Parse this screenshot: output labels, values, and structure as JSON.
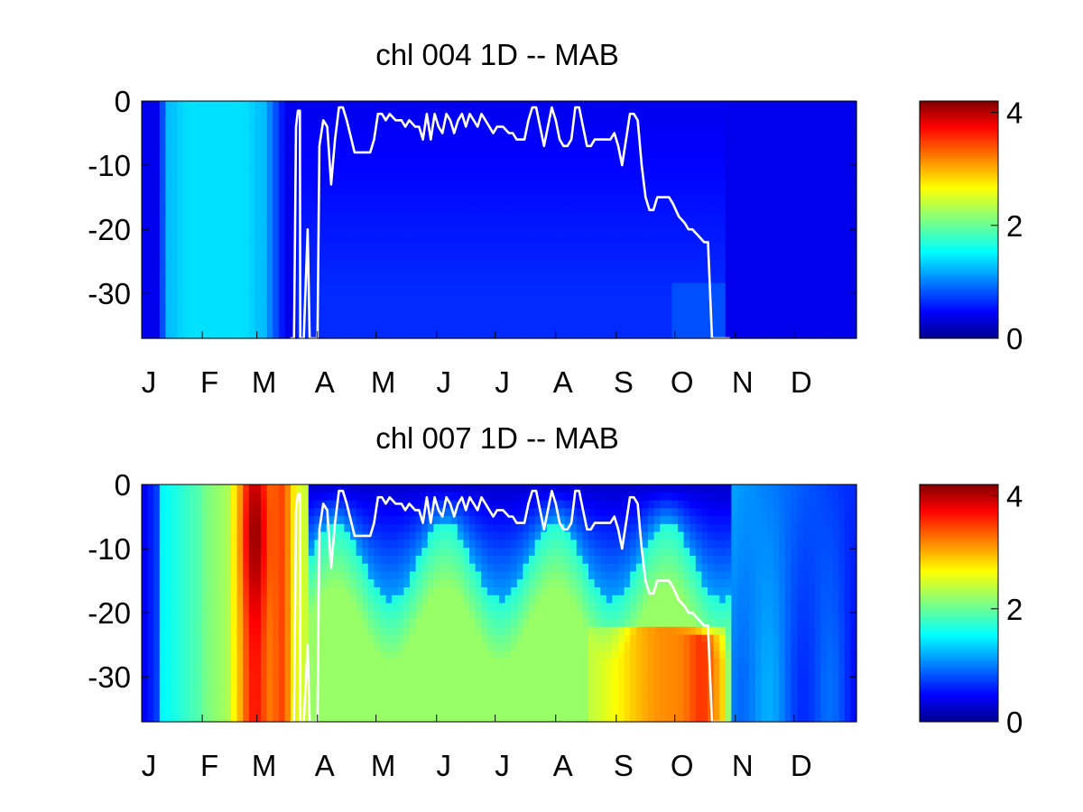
{
  "chart_data": [
    {
      "type": "heatmap",
      "title": "chl  004 1D   -- MAB",
      "x_tick_labels": [
        "J",
        "F",
        "M",
        "A",
        "M",
        "J",
        "J",
        "A",
        "S",
        "O",
        "N",
        "D"
      ],
      "y_tick_labels": [
        "0",
        "-10",
        "-20",
        "-30"
      ],
      "y_ticks": [
        0,
        -10,
        -20,
        -30
      ],
      "ylim": [
        -37,
        0
      ],
      "colorbar": {
        "ticks": [
          0,
          2,
          4
        ],
        "tick_labels": [
          "0",
          "2",
          "4"
        ],
        "clim": [
          0,
          4.2
        ],
        "colormap": "jet"
      },
      "mixed_layer_line": {
        "color": "#ffffff",
        "x_day": [
          76,
          77,
          78,
          79,
          80,
          81,
          81.2,
          83,
          85,
          86,
          87,
          89,
          90,
          91,
          93,
          95,
          97,
          99,
          101,
          103,
          105,
          109,
          111,
          113,
          115,
          117,
          119,
          121,
          123,
          125,
          127,
          130,
          133,
          135,
          137,
          140,
          142,
          144,
          146,
          148,
          150,
          152,
          154,
          156,
          158,
          160,
          162,
          164,
          166,
          168,
          170,
          172,
          174,
          176,
          178,
          180,
          182,
          185,
          188,
          190,
          192,
          194,
          196,
          198,
          200,
          202,
          204,
          206,
          208,
          210,
          212,
          214,
          216,
          218,
          220,
          222,
          224,
          226,
          228,
          230,
          232,
          234,
          236,
          238,
          240,
          242,
          244,
          246,
          248,
          250,
          252,
          254,
          256,
          258,
          260,
          262,
          264,
          266,
          268,
          270,
          272,
          275,
          278,
          280,
          282,
          285,
          288,
          290,
          292,
          294,
          296,
          298,
          300,
          301,
          301.2
        ],
        "depth": [
          -37,
          -37,
          -37,
          -4,
          -1.5,
          -1.5,
          -37,
          -37,
          -20,
          -37,
          -37,
          -37,
          -37,
          -7,
          -3,
          -4,
          -13,
          -6,
          -1,
          -1,
          -3,
          -8,
          -8,
          -8,
          -8,
          -8,
          -6,
          -2,
          -2,
          -3,
          -2,
          -3,
          -3,
          -4,
          -3,
          -4,
          -4,
          -6,
          -2,
          -6,
          -2,
          -4,
          -5,
          -2,
          -3,
          -5,
          -3,
          -2,
          -4,
          -2,
          -3,
          -4,
          -2,
          -3,
          -4,
          -5,
          -4,
          -4,
          -5,
          -5,
          -6,
          -6,
          -6,
          -3,
          -1,
          -1,
          -4,
          -7,
          -4,
          -1,
          -3,
          -6,
          -7,
          -7,
          -6,
          -1,
          -1,
          -4,
          -7,
          -7,
          -6,
          -6,
          -6,
          -6,
          -6,
          -5,
          -7,
          -10,
          -6,
          -2,
          -2,
          -3,
          -10,
          -15,
          -17,
          -17,
          -15,
          -15,
          -15,
          -15,
          -16,
          -18,
          -19,
          -20,
          -20,
          -21,
          -22,
          -22,
          -37,
          -37,
          -37,
          -37,
          -37,
          -37,
          -37
        ]
      },
      "colorbar_level": "0 to ~4.2 (same scale both panels)"
    },
    {
      "type": "heatmap",
      "title": "chl  007 1D   -- MAB",
      "x_tick_labels": [
        "J",
        "F",
        "M",
        "A",
        "M",
        "J",
        "J",
        "A",
        "S",
        "O",
        "N",
        "D"
      ],
      "y_tick_labels": [
        "0",
        "-10",
        "-20",
        "-30"
      ],
      "y_ticks": [
        0,
        -10,
        -20,
        -30
      ],
      "ylim": [
        -37,
        0
      ],
      "colorbar": {
        "ticks": [
          0,
          2,
          4
        ],
        "tick_labels": [
          "0",
          "2",
          "4"
        ],
        "clim": [
          0,
          4.2
        ],
        "colormap": "jet"
      },
      "mixed_layer_line": {
        "color": "#ffffff",
        "x_day": [
          76,
          77,
          78,
          79,
          80,
          81,
          81.2,
          83,
          85,
          86,
          87,
          89,
          90,
          91,
          93,
          95,
          97,
          99,
          101,
          103,
          105,
          109,
          111,
          113,
          115,
          117,
          119,
          121,
          123,
          125,
          127,
          130,
          133,
          135,
          137,
          140,
          142,
          144,
          146,
          148,
          150,
          152,
          154,
          156,
          158,
          160,
          162,
          164,
          166,
          168,
          170,
          172,
          174,
          176,
          178,
          180,
          182,
          185,
          188,
          190,
          192,
          194,
          196,
          198,
          200,
          202,
          204,
          206,
          208,
          210,
          212,
          214,
          216,
          218,
          220,
          222,
          224,
          226,
          228,
          230,
          232,
          234,
          236,
          238,
          240,
          242,
          244,
          246,
          248,
          250,
          252,
          254,
          256,
          258,
          260,
          262,
          264,
          266,
          268,
          270,
          272,
          275,
          278,
          280,
          282,
          285,
          288,
          290,
          292,
          294,
          296,
          298,
          300,
          301,
          301.2
        ],
        "depth": [
          -37,
          -37,
          -37,
          -4,
          -1.5,
          -1.5,
          -37,
          -37,
          -25,
          -37,
          -37,
          -37,
          -37,
          -7,
          -3,
          -4,
          -13,
          -6,
          -1,
          -1,
          -3,
          -8,
          -8,
          -8,
          -8,
          -8,
          -6,
          -2,
          -2,
          -3,
          -2,
          -3,
          -3,
          -4,
          -3,
          -4,
          -4,
          -6,
          -2,
          -6,
          -2,
          -4,
          -5,
          -2,
          -3,
          -5,
          -3,
          -2,
          -4,
          -2,
          -3,
          -4,
          -2,
          -3,
          -4,
          -5,
          -4,
          -4,
          -5,
          -5,
          -6,
          -6,
          -6,
          -3,
          -1,
          -1,
          -4,
          -7,
          -4,
          -1,
          -3,
          -6,
          -7,
          -7,
          -6,
          -1,
          -1,
          -4,
          -7,
          -7,
          -6,
          -6,
          -6,
          -6,
          -6,
          -5,
          -7,
          -10,
          -6,
          -2,
          -2,
          -3,
          -10,
          -15,
          -17,
          -17,
          -15,
          -15,
          -15,
          -15,
          -16,
          -18,
          -19,
          -20,
          -20,
          -21,
          -22,
          -22,
          -37,
          -37,
          -37,
          -37,
          -37,
          -37,
          -37
        ]
      }
    }
  ]
}
